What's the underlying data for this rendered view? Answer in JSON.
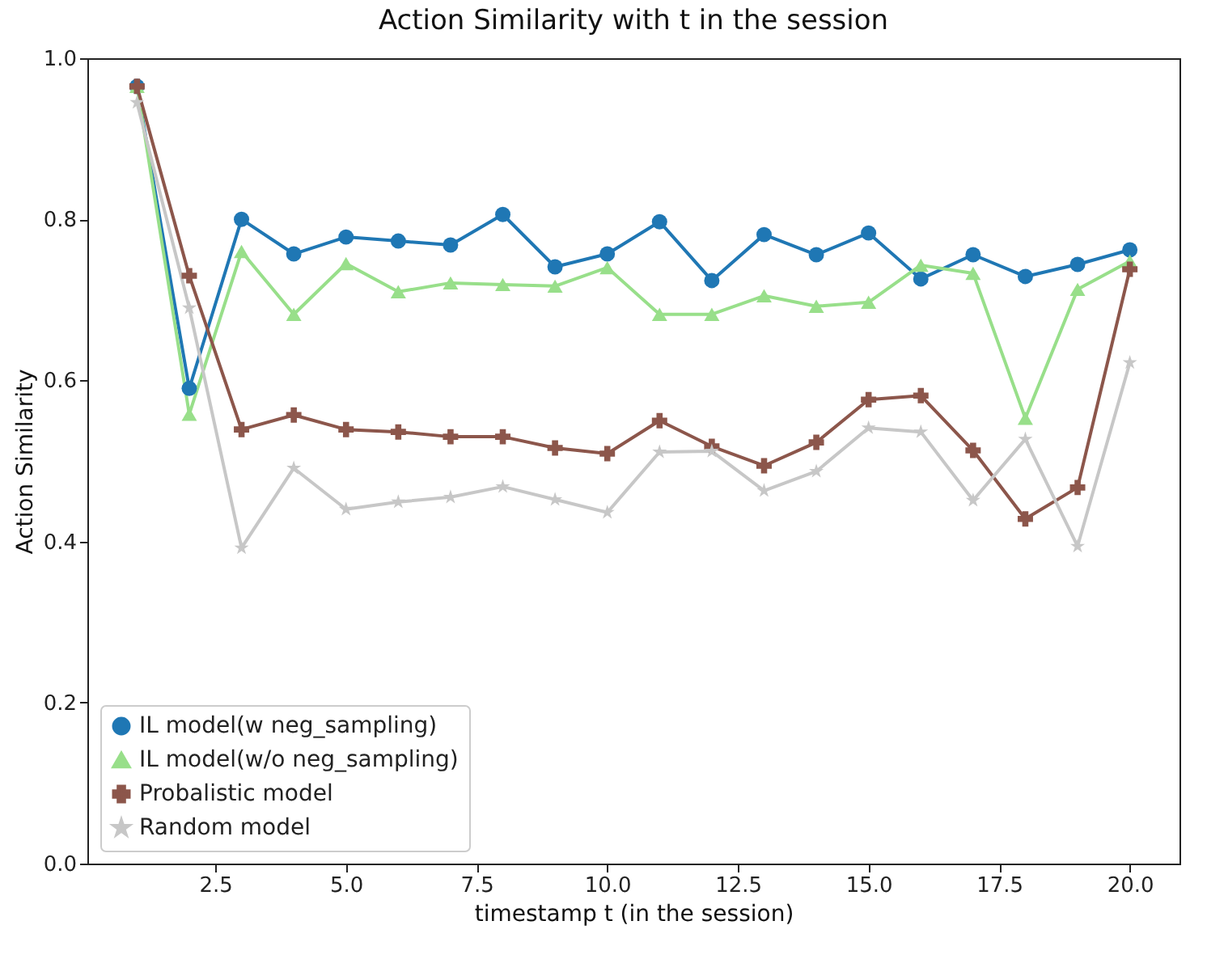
{
  "chart_data": {
    "type": "line",
    "title": "Action Similarity with t in the session",
    "xlabel": "timestamp t (in the session)",
    "ylabel": "Action Similarity",
    "x": [
      1,
      2,
      3,
      4,
      5,
      6,
      7,
      8,
      9,
      10,
      11,
      12,
      13,
      14,
      15,
      16,
      17,
      18,
      19,
      20
    ],
    "series": [
      {
        "name": "IL model(w neg_sampling)",
        "color": "#1f77b4",
        "marker": "circle",
        "values": [
          0.965,
          0.59,
          0.8,
          0.757,
          0.778,
          0.773,
          0.768,
          0.806,
          0.741,
          0.757,
          0.797,
          0.724,
          0.781,
          0.756,
          0.783,
          0.726,
          0.756,
          0.729,
          0.744,
          0.762
        ]
      },
      {
        "name": "IL model(w/o neg_sampling)",
        "color": "#98df8a",
        "marker": "triangle",
        "values": [
          0.965,
          0.558,
          0.76,
          0.682,
          0.745,
          0.71,
          0.721,
          0.719,
          0.717,
          0.74,
          0.682,
          0.682,
          0.705,
          0.692,
          0.697,
          0.743,
          0.733,
          0.553,
          0.713,
          0.748
        ]
      },
      {
        "name": "Probalistic model",
        "color": "#8c564b",
        "marker": "cross",
        "values": [
          0.965,
          0.73,
          0.539,
          0.557,
          0.539,
          0.536,
          0.53,
          0.53,
          0.516,
          0.509,
          0.55,
          0.518,
          0.494,
          0.523,
          0.576,
          0.581,
          0.513,
          0.428,
          0.467,
          0.738
        ]
      },
      {
        "name": "Random model",
        "color": "#c7c7c7",
        "marker": "star",
        "values": [
          0.945,
          0.69,
          0.392,
          0.491,
          0.44,
          0.449,
          0.455,
          0.468,
          0.452,
          0.436,
          0.511,
          0.512,
          0.463,
          0.487,
          0.541,
          0.536,
          0.451,
          0.527,
          0.394,
          0.622
        ]
      }
    ],
    "xlim": [
      0.05,
      20.95
    ],
    "ylim": [
      0,
      1
    ],
    "xticks": [
      {
        "value": 2.5,
        "label": "2.5"
      },
      {
        "value": 5,
        "label": "5.0"
      },
      {
        "value": 7.5,
        "label": "7.5"
      },
      {
        "value": 10,
        "label": "10.0"
      },
      {
        "value": 12.5,
        "label": "12.5"
      },
      {
        "value": 15,
        "label": "15.0"
      },
      {
        "value": 17.5,
        "label": "17.5"
      },
      {
        "value": 20,
        "label": "20.0"
      }
    ],
    "yticks": [
      {
        "value": 0,
        "label": "0.0"
      },
      {
        "value": 0.2,
        "label": "0.2"
      },
      {
        "value": 0.4,
        "label": "0.4"
      },
      {
        "value": 0.6,
        "label": "0.6"
      },
      {
        "value": 0.8,
        "label": "0.8"
      },
      {
        "value": 1,
        "label": "1.0"
      }
    ],
    "grid": false,
    "legend": "bottom left",
    "line_style": "solid"
  }
}
